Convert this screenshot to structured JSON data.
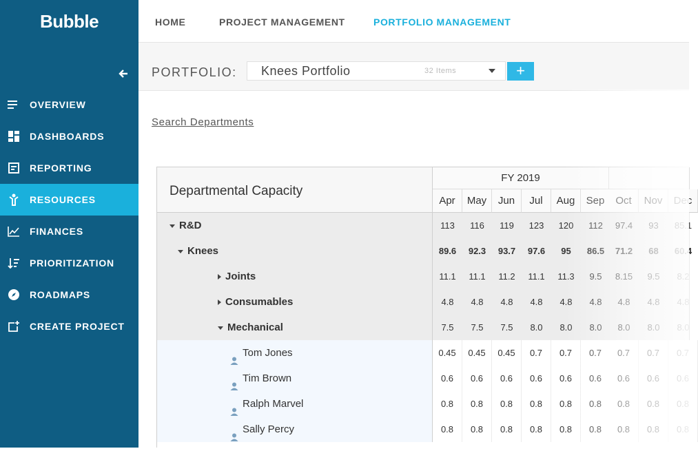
{
  "app": {
    "logo": "Bubble"
  },
  "sidebar": {
    "items": [
      {
        "label": "OVERVIEW",
        "icon": "list-icon",
        "active": false
      },
      {
        "label": "DASHBOARDS",
        "icon": "dashboard-icon",
        "active": false
      },
      {
        "label": "REPORTING",
        "icon": "reporting-icon",
        "active": false
      },
      {
        "label": "RESOURCES",
        "icon": "resources-icon",
        "active": true
      },
      {
        "label": "FINANCES",
        "icon": "finances-icon",
        "active": false
      },
      {
        "label": "PRIORITIZATION",
        "icon": "prioritization-icon",
        "active": false
      },
      {
        "label": "ROADMAPS",
        "icon": "compass-icon",
        "active": false
      },
      {
        "label": "CREATE PROJECT",
        "icon": "create-project-icon",
        "active": false
      }
    ]
  },
  "topnav": {
    "tabs": [
      {
        "label": "HOME",
        "active": false
      },
      {
        "label": "PROJECT MANAGEMENT",
        "active": false
      },
      {
        "label": "PORTFOLIO MANAGEMENT",
        "active": true
      }
    ]
  },
  "portfolio": {
    "label": "PORTFOLIO:",
    "selected": "Knees Portfolio",
    "count": "32 Items",
    "add_label": "+"
  },
  "search": {
    "label": "Search Departments"
  },
  "table": {
    "title": "Departmental Capacity",
    "fiscal_year": "FY 2019",
    "months": [
      "Apr",
      "May",
      "Jun",
      "Jul",
      "Aug",
      "Sep",
      "Oct",
      "Nov",
      "Dec"
    ],
    "rows": [
      {
        "label": "R&D",
        "type": "group",
        "level": 0,
        "expander": "down",
        "values": [
          "113",
          "116",
          "119",
          "123",
          "120",
          "112",
          "97.4",
          "93",
          "85.1"
        ]
      },
      {
        "label": "Knees",
        "type": "group",
        "level": 1,
        "expander": "down",
        "values": [
          "89.6",
          "92.3",
          "93.7",
          "97.6",
          "95",
          "86.5",
          "71.2",
          "68",
          "60.4"
        ]
      },
      {
        "label": "Joints",
        "type": "group",
        "level": 2,
        "expander": "right",
        "values": [
          "11.1",
          "11.1",
          "11.2",
          "11.1",
          "11.3",
          "9.5",
          "8.15",
          "9.5",
          "8.2"
        ]
      },
      {
        "label": "Consumables",
        "type": "group",
        "level": 2,
        "expander": "right",
        "values": [
          "4.8",
          "4.8",
          "4.8",
          "4.8",
          "4.8",
          "4.8",
          "4.8",
          "4.8",
          "4.8"
        ]
      },
      {
        "label": "Mechanical",
        "type": "group",
        "level": 2,
        "expander": "down",
        "values": [
          "7.5",
          "7.5",
          "7.5",
          "8.0",
          "8.0",
          "8.0",
          "8.0",
          "8.0",
          "8.0"
        ]
      },
      {
        "label": "Tom Jones",
        "type": "person",
        "level": 3,
        "values": [
          "0.45",
          "0.45",
          "0.45",
          "0.7",
          "0.7",
          "0.7",
          "0.7",
          "0.7",
          "0.7"
        ]
      },
      {
        "label": "Tim Brown",
        "type": "person",
        "level": 3,
        "values": [
          "0.6",
          "0.6",
          "0.6",
          "0.6",
          "0.6",
          "0.6",
          "0.6",
          "0.6",
          "0.6"
        ]
      },
      {
        "label": "Ralph Marvel",
        "type": "person",
        "level": 3,
        "values": [
          "0.8",
          "0.8",
          "0.8",
          "0.8",
          "0.8",
          "0.8",
          "0.8",
          "0.8",
          "0.8"
        ]
      },
      {
        "label": "Sally Percy",
        "type": "person",
        "level": 3,
        "values": [
          "0.8",
          "0.8",
          "0.8",
          "0.8",
          "0.8",
          "0.8",
          "0.8",
          "0.8",
          "0.8"
        ]
      }
    ]
  },
  "colors": {
    "sidebar": "#0f5d83",
    "accent": "#1ab0dc"
  }
}
